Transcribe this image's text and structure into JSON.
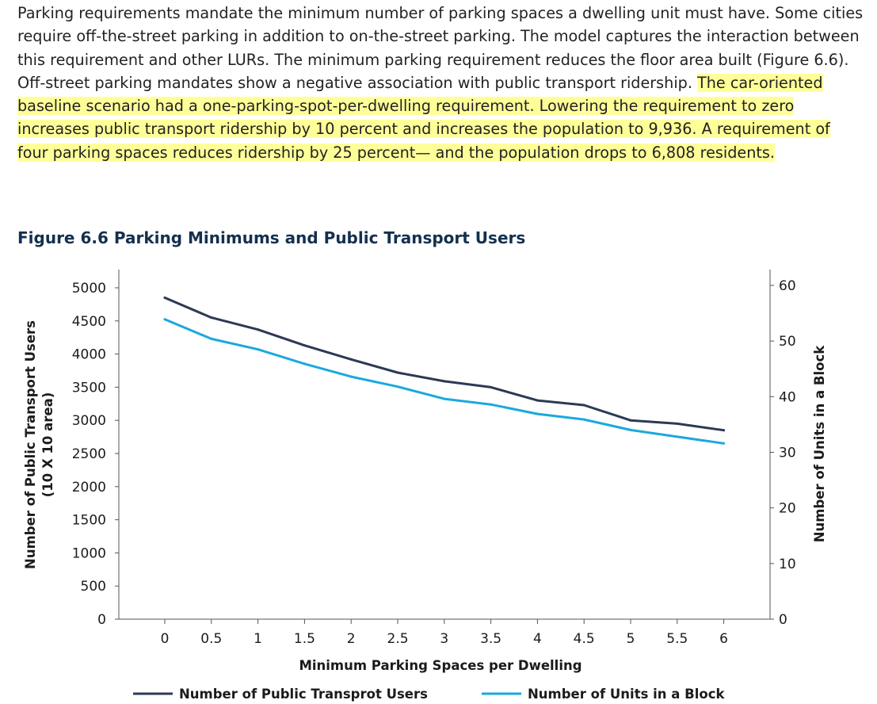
{
  "paragraph": {
    "text_plain": "Parking requirements mandate the minimum number of parking spaces a dwelling unit must have. Some cities require off-the-street parking in addition to on-the-street parking. The model captures the interaction between this requirement and other LURs. The minimum parking requirement reduces the floor area built (Figure 6.6). Off-street parking mandates show a negative association with public transport ridership. ",
    "text_highlighted": "The car-oriented baseline scenario had a one-parking-spot-per-dwelling requirement. Lowering the requirement to zero increases public transport ridership by 10 percent and increases the population to 9,936. A requirement of four parking spaces reduces ridership by 25 percent— and the population drops to 6,808 residents."
  },
  "figure": {
    "title": "Figure 6.6 Parking Minimums and Public Transport Users"
  },
  "colors": {
    "series_users": "#2b3a55",
    "series_units": "#1ba9dc",
    "axis": "#555555",
    "highlight": "#ffff99",
    "title": "#14304f"
  },
  "chart_data": {
    "type": "line",
    "title": "Figure 6.6 Parking Minimums and Public Transport Users",
    "xlabel": "Minimum Parking Spaces per Dwelling",
    "ylabel_left": "Number of Public Transport Users (10 X 10 area)",
    "ylabel_left_lines": [
      "Number of Public Transport Users",
      "(10 X 10 area)"
    ],
    "ylabel_right": "Number of Units in a Block",
    "x": [
      0,
      0.5,
      1,
      1.5,
      2,
      2.5,
      3,
      3.5,
      4,
      4.5,
      5,
      5.5,
      6
    ],
    "x_tick_labels": [
      "0",
      "0.5",
      "1",
      "1.5",
      "2",
      "2.5",
      "3",
      "3.5",
      "4",
      "4.5",
      "5",
      "5.5",
      "6"
    ],
    "y_left_ticks": [
      0,
      500,
      1000,
      1500,
      2000,
      2500,
      3000,
      3500,
      4000,
      4500,
      5000
    ],
    "y_left_ylim": [
      0,
      5000
    ],
    "y_right_ticks": [
      0,
      10,
      20,
      30,
      40,
      50,
      60
    ],
    "y_right_ylim": [
      0,
      60
    ],
    "legend_position": "bottom",
    "series": [
      {
        "name": "Number of Public Transprot Users",
        "axis": "left",
        "color": "#2b3a55",
        "values": [
          4850,
          4550,
          4370,
          4130,
          3920,
          3720,
          3590,
          3500,
          3300,
          3230,
          3000,
          2950,
          2850
        ]
      },
      {
        "name": "Number of Units in a Block",
        "axis": "right",
        "color": "#1ba9dc",
        "values": [
          53.9,
          50.4,
          48.5,
          45.9,
          43.6,
          41.8,
          39.6,
          38.6,
          36.9,
          35.9,
          34.0,
          32.8,
          31.6
        ]
      }
    ]
  }
}
